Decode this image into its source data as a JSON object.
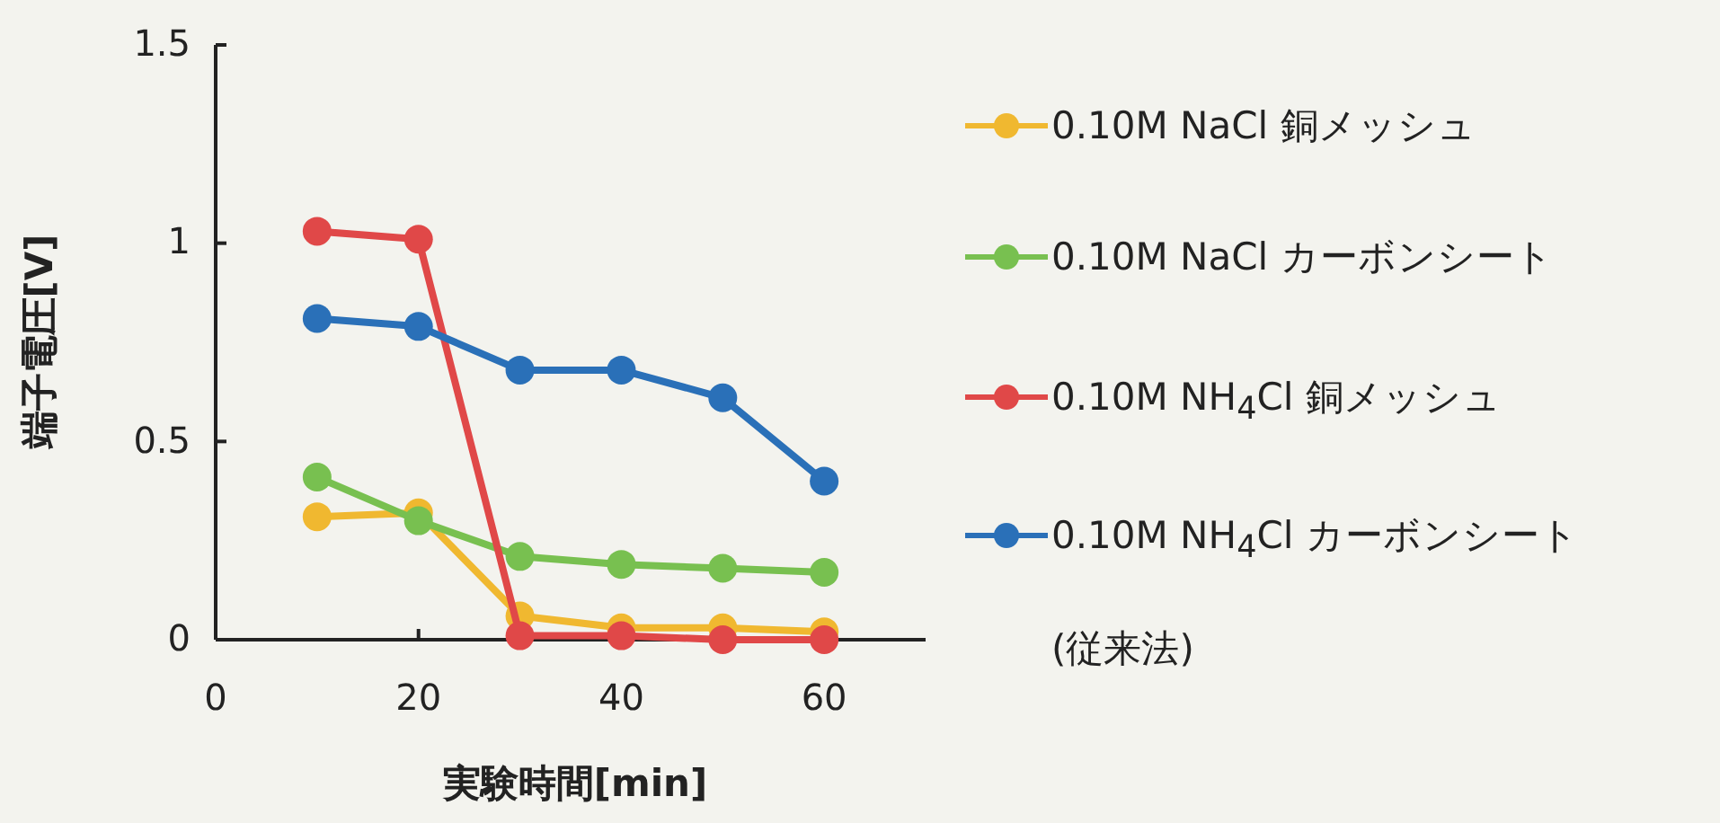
{
  "chart_data": {
    "type": "line",
    "xlabel": "実験時間[min]",
    "ylabel": "端子電圧[V]",
    "xlim": [
      0,
      70
    ],
    "ylim": [
      0,
      1.5
    ],
    "xticks": [
      0,
      20,
      40,
      60
    ],
    "yticks": [
      0,
      0.5,
      1,
      1.5
    ],
    "grid": false,
    "legend": "right",
    "marker": "circle",
    "line_style": "solid",
    "x": [
      10,
      20,
      30,
      40,
      50,
      60
    ],
    "series": [
      {
        "name": "0.10M NaCl 銅メッシュ",
        "color": "#f0b830",
        "values": [
          0.31,
          0.32,
          0.06,
          0.03,
          0.03,
          0.02
        ]
      },
      {
        "name": "0.10M NaCl カーボンシート",
        "color": "#78c050",
        "values": [
          0.41,
          0.3,
          0.21,
          0.19,
          0.18,
          0.17
        ]
      },
      {
        "name": "0.10M NH$_{4}$Cl 銅メッシュ",
        "color": "#e04848",
        "values": [
          1.03,
          1.01,
          0.01,
          0.01,
          0.0,
          0.0
        ]
      },
      {
        "name": "0.10M NH$_{4}$Cl カーボンシート (従来法)",
        "color": "#2a70b8",
        "values": [
          0.81,
          0.79,
          0.68,
          0.68,
          0.61,
          0.4
        ]
      }
    ]
  }
}
